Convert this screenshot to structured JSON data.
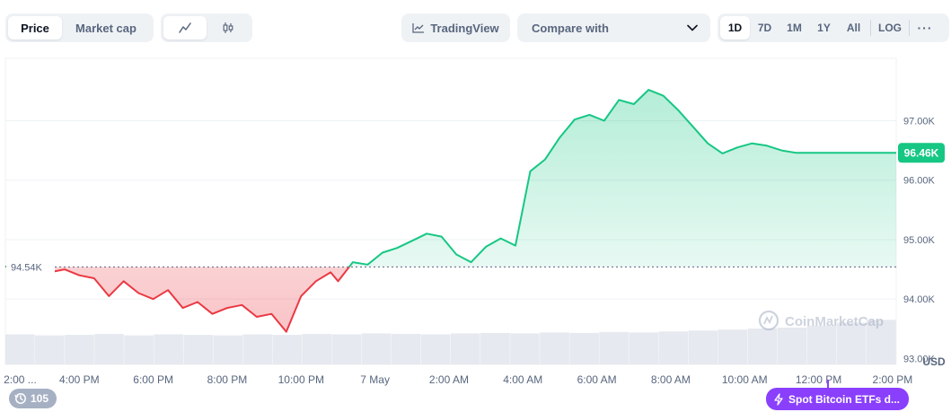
{
  "toolbar": {
    "type_tabs": [
      {
        "label": "Price",
        "active": true
      },
      {
        "label": "Market cap",
        "active": false
      }
    ],
    "chart_style": {
      "line_icon": "line-chart-icon",
      "candle_icon": "candlestick-icon",
      "active": "line"
    },
    "tradingview_label": "TradingView",
    "tradingview_icon": "chart-trend-icon",
    "compare_label": "Compare with",
    "ranges": [
      "1D",
      "7D",
      "1M",
      "1Y",
      "All"
    ],
    "active_range": "1D",
    "log_label": "LOG",
    "more_label": "···"
  },
  "colors": {
    "up": "#16c784",
    "down": "#ea3943",
    "grid": "#eff2f5",
    "axis_text": "#58667e",
    "volume": "#e6e9ef",
    "news": "#8a3ffc"
  },
  "chart_data": {
    "type": "area",
    "title": "",
    "currency_label": "USD",
    "baseline": 94.54,
    "baseline_label": "94.54K",
    "current_label": "96.46K",
    "ylim": [
      92.9,
      98.05
    ],
    "yticks": [
      {
        "value": 97,
        "label": "97.00K"
      },
      {
        "value": 96,
        "label": "96.00K"
      },
      {
        "value": 95,
        "label": "95.00K"
      },
      {
        "value": 94,
        "label": "94.00K"
      },
      {
        "value": 93,
        "label": "93.00K"
      }
    ],
    "xlim": [
      0,
      24.1
    ],
    "xticks": [
      {
        "value": 0.4,
        "label": "2:00 ..."
      },
      {
        "value": 2.0,
        "label": "4:00 PM"
      },
      {
        "value": 4.0,
        "label": "6:00 PM"
      },
      {
        "value": 6.0,
        "label": "8:00 PM"
      },
      {
        "value": 8.0,
        "label": "10:00 PM"
      },
      {
        "value": 10.0,
        "label": "7 May"
      },
      {
        "value": 12.0,
        "label": "2:00 AM"
      },
      {
        "value": 14.0,
        "label": "4:00 AM"
      },
      {
        "value": 16.0,
        "label": "6:00 AM"
      },
      {
        "value": 18.0,
        "label": "8:00 AM"
      },
      {
        "value": 20.0,
        "label": "10:00 AM"
      },
      {
        "value": 22.0,
        "label": "12:00 PM"
      },
      {
        "value": 24.0,
        "label": "2:00 PM"
      }
    ],
    "x": [
      0,
      1.2,
      1.6,
      2.0,
      2.4,
      2.8,
      3.2,
      3.6,
      4.0,
      4.4,
      4.8,
      5.2,
      5.6,
      6.0,
      6.4,
      6.8,
      7.2,
      7.6,
      8.0,
      8.4,
      8.8,
      9.0,
      9.4,
      9.8,
      10.2,
      10.6,
      11.0,
      11.4,
      11.8,
      12.2,
      12.6,
      13.0,
      13.4,
      13.8,
      14.2,
      14.6,
      15.0,
      15.4,
      15.8,
      16.2,
      16.6,
      17.0,
      17.4,
      17.8,
      18.2,
      18.6,
      19.0,
      19.4,
      19.8,
      20.2,
      20.6,
      21.0,
      21.4,
      21.8,
      22.2,
      22.6,
      23.0,
      23.4,
      23.8,
      24.1
    ],
    "values": [
      94.55,
      94.45,
      94.5,
      94.4,
      94.35,
      94.05,
      94.3,
      94.1,
      94.0,
      94.15,
      93.85,
      93.95,
      93.75,
      93.85,
      93.9,
      93.7,
      93.75,
      93.45,
      94.05,
      94.3,
      94.45,
      94.3,
      94.62,
      94.58,
      94.78,
      94.86,
      94.98,
      95.1,
      95.05,
      94.75,
      94.62,
      94.88,
      95.02,
      94.9,
      96.15,
      96.35,
      96.72,
      97.02,
      97.1,
      97.0,
      97.35,
      97.28,
      97.52,
      97.42,
      97.18,
      96.9,
      96.62,
      96.45,
      96.55,
      96.62,
      96.58,
      96.5,
      96.46,
      96.46,
      96.46,
      96.46,
      96.46,
      96.46,
      96.46,
      96.46
    ],
    "volume_fraction": [
      0.62,
      0.6,
      0.61,
      0.63,
      0.6,
      0.62,
      0.61,
      0.6,
      0.62,
      0.61,
      0.63,
      0.62,
      0.64,
      0.63,
      0.62,
      0.64,
      0.65,
      0.64,
      0.66,
      0.65,
      0.67,
      0.66,
      0.68,
      0.7,
      0.72,
      0.74,
      0.76,
      0.8,
      0.86,
      0.92
    ],
    "watermark": "CoinMarketCap"
  },
  "badges": {
    "history_icon": "history-icon",
    "history_count": "105",
    "news_icon": "lightning-icon",
    "news_label": "Spot Bitcoin ETFs d..."
  }
}
